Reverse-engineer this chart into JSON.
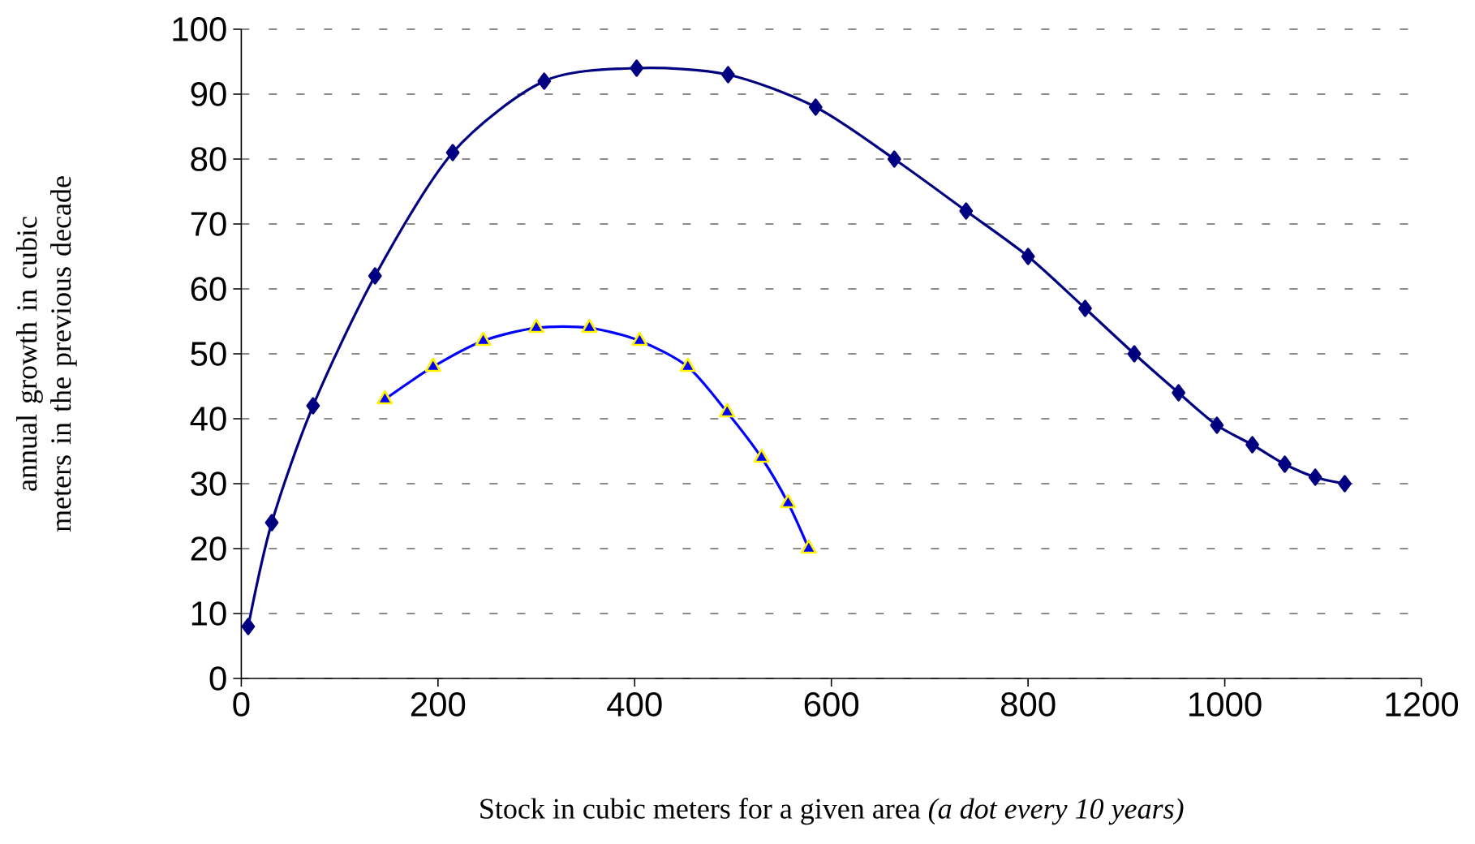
{
  "chart_data": {
    "type": "line",
    "xlabel": "Stock in cubic meters for a given area  *(a dot every 10 years)*",
    "ylabel": "annual growth in cubic meters in the previous decade",
    "xlim": [
      0,
      1200
    ],
    "xticks": [
      0,
      200,
      400,
      600,
      800,
      1000,
      1200
    ],
    "ylim": [
      0,
      100
    ],
    "yticks": [
      0,
      10,
      20,
      30,
      40,
      50,
      60,
      70,
      80,
      90,
      100
    ],
    "grid": "y",
    "legend": false,
    "series": [
      {
        "color": "#000080",
        "marker": "diamond",
        "x": [
          7,
          31,
          73,
          136,
          215,
          308,
          402,
          495,
          584,
          664,
          737,
          800,
          858,
          908,
          953,
          992,
          1028,
          1061,
          1092,
          1122
        ],
        "values": [
          8,
          24,
          42,
          62,
          81,
          92,
          94,
          93,
          88,
          80,
          72,
          65,
          57,
          50,
          44,
          39,
          36,
          33,
          31,
          30
        ]
      },
      {
        "color": "#0000ff",
        "marker": "triangle",
        "x": [
          146,
          195,
          246,
          300,
          354,
          405,
          454,
          494,
          529,
          556,
          577
        ],
        "values": [
          43,
          48,
          52,
          54,
          54,
          52,
          48,
          41,
          34,
          27,
          20
        ]
      }
    ]
  }
}
